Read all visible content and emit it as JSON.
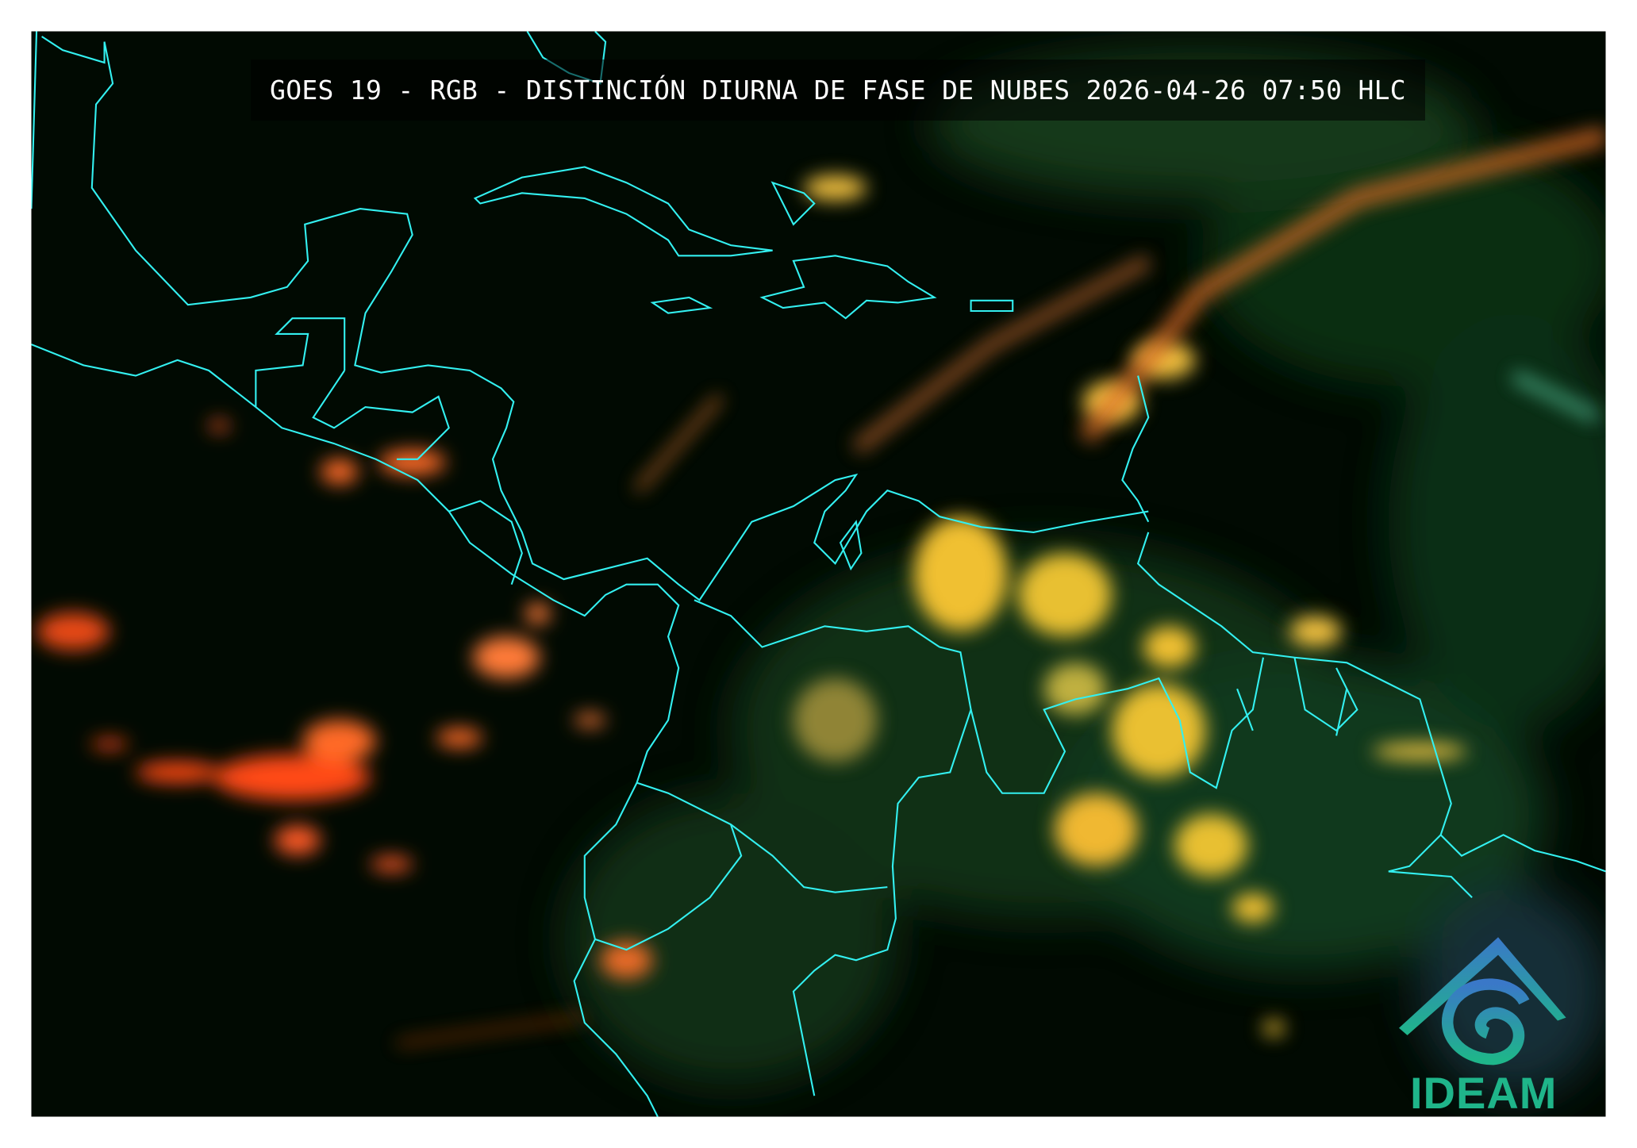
{
  "title": "GOES 19 - RGB - DISTINCIÓN DIURNA DE FASE DE NUBES 2026-04-26 07:50 HLC",
  "logo": {
    "text": "IDEAM"
  },
  "colors": {
    "background": "#010a02",
    "coastline": "#33f0f0",
    "ice_clouds": "#ff5a1e",
    "water_clouds": "#f0c030",
    "vegetation": "#1d6e2a",
    "logo_top": "#3a78c8",
    "logo_bottom": "#1fb58a"
  },
  "icons": {
    "logo": "ideam-logo"
  }
}
